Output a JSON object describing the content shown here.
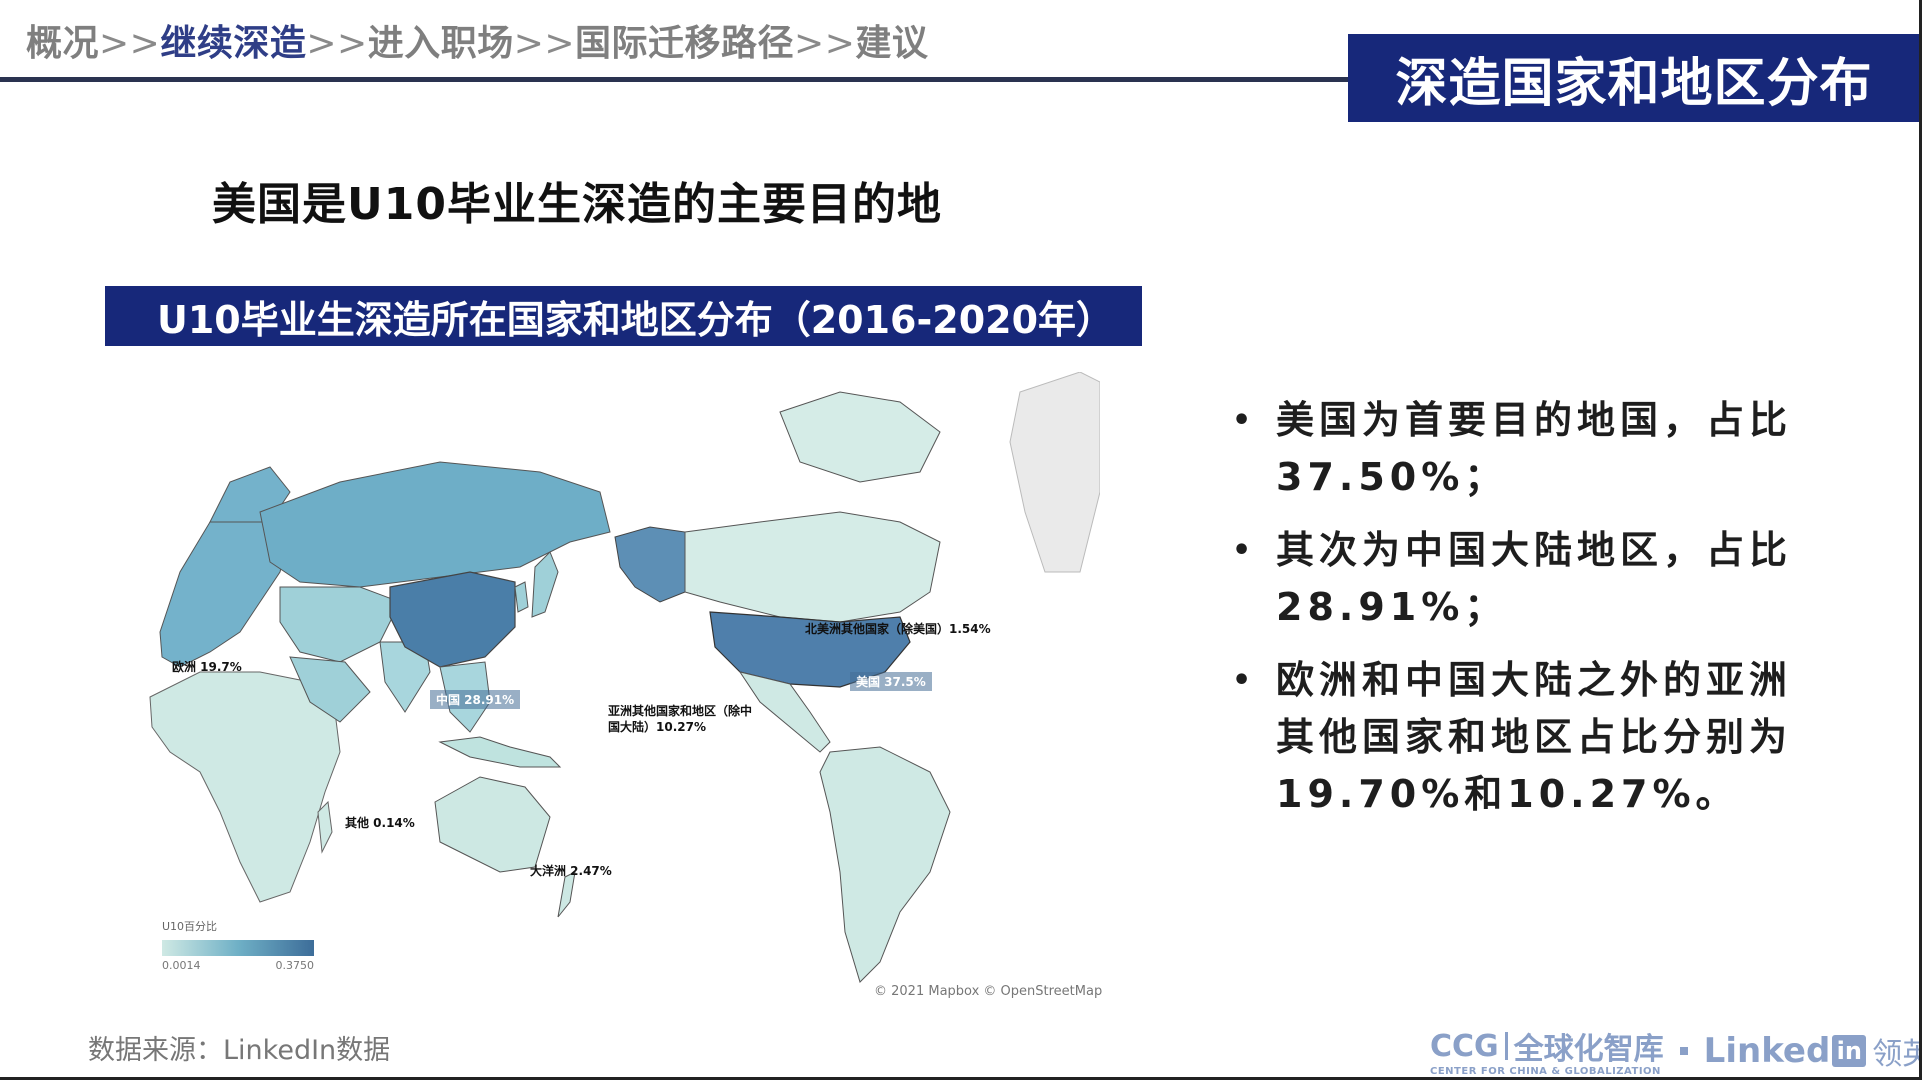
{
  "breadcrumb": {
    "items": [
      "概况",
      "继续深造",
      "进入职场",
      "国际迁移路径",
      "建议"
    ],
    "separator": ">>",
    "active_index": 1
  },
  "section_title": "深造国家和地区分布",
  "headline": "美国是U10毕业生深造的主要目的地",
  "map": {
    "banner_title": "U10毕业生深造所在国家和地区分布（2016-2020年）",
    "regions": [
      {
        "name": "欧洲",
        "share": 19.7,
        "label": "欧洲 19.7%"
      },
      {
        "name": "中国",
        "share": 28.91,
        "label": "中国 28.91%"
      },
      {
        "name": "亚洲其他国家和地区（除中国大陆）",
        "share": 10.27,
        "label_line1": "亚洲其他国家和地区（除中",
        "label_line2": "国大陆）10.27%"
      },
      {
        "name": "北美洲其他国家（除美国）",
        "share": 1.54,
        "label": "北美洲其他国家（除美国）1.54%"
      },
      {
        "name": "美国",
        "share": 37.5,
        "label": "美国 37.5%"
      },
      {
        "name": "其他",
        "share": 0.14,
        "label": "其他 0.14%"
      },
      {
        "name": "大洋洲",
        "share": 2.47,
        "label": "大洋洲 2.47%"
      }
    ],
    "legend": {
      "title": "U10百分比",
      "min": "0.0014",
      "max": "0.3750"
    },
    "attribution": "© 2021 Mapbox © OpenStreetMap",
    "colors": {
      "low": "#cfe9e4",
      "mid": "#6fb0c6",
      "high": "#3d6d99"
    }
  },
  "bullets": [
    "美国为首要目的地国，占比37.50%；",
    "其次为中国大陆地区，占比28.91%；",
    "欧洲和中国大陆之外的亚洲其他国家和地区占比分别为19.70%和10.27%。"
  ],
  "source": "数据来源：LinkedIn数据",
  "logos": {
    "ccg": "CCG",
    "ccg_cn": "全球化智库",
    "ccg_sub": "CENTER FOR CHINA & GLOBALIZATION",
    "linkedin_text": "Linked",
    "linkedin_in": "in",
    "linkedin_cn": "领英"
  },
  "theme": {
    "navy": "#17287a",
    "gray_text": "#7f7f7f"
  }
}
